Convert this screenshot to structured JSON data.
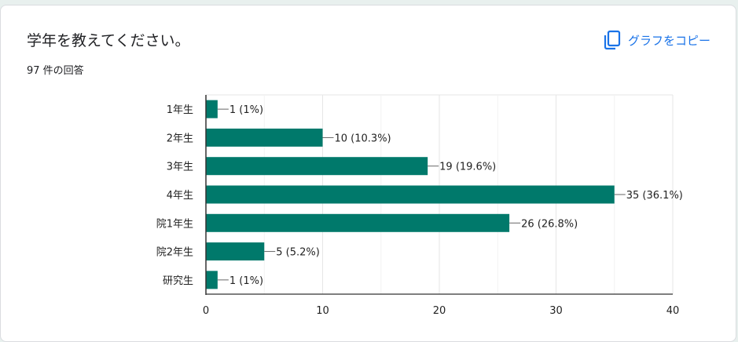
{
  "question": {
    "title": "学年を教えてください。",
    "response_count": "97 件の回答"
  },
  "toolbar": {
    "copy_label": "グラフをコピー",
    "copy_icon": "copy-icon"
  },
  "colors": {
    "bar": "#00796b",
    "accent": "#1a73e8",
    "gridline": "#e6e6e6",
    "axis": "#333333"
  },
  "chart_data": {
    "type": "bar",
    "orientation": "horizontal",
    "categories": [
      "1年生",
      "2年生",
      "3年生",
      "4年生",
      "院1年生",
      "院2年生",
      "研究生"
    ],
    "values": [
      1,
      10,
      19,
      35,
      26,
      5,
      1
    ],
    "data_labels": [
      "1 (1%)",
      "10 (10.3%)",
      "19 (19.6%)",
      "35 (36.1%)",
      "26 (26.8%)",
      "5 (5.2%)",
      "1 (1%)"
    ],
    "xlim": [
      0,
      40
    ],
    "xticks": [
      0,
      10,
      20,
      30,
      40
    ],
    "grid": true,
    "legend": "none"
  }
}
